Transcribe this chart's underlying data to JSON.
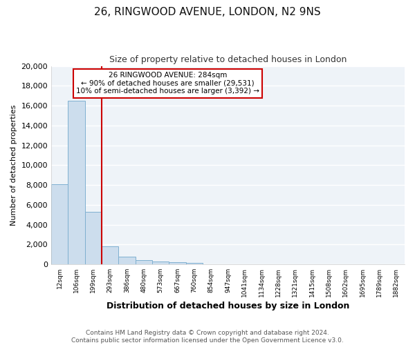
{
  "title": "26, RINGWOOD AVENUE, LONDON, N2 9NS",
  "subtitle": "Size of property relative to detached houses in London",
  "xlabel": "Distribution of detached houses by size in London",
  "ylabel": "Number of detached properties",
  "bar_labels": [
    "12sqm",
    "106sqm",
    "199sqm",
    "293sqm",
    "386sqm",
    "480sqm",
    "573sqm",
    "667sqm",
    "760sqm",
    "854sqm",
    "947sqm",
    "1041sqm",
    "1134sqm",
    "1228sqm",
    "1321sqm",
    "1415sqm",
    "1508sqm",
    "1602sqm",
    "1695sqm",
    "1789sqm",
    "1882sqm"
  ],
  "bar_values": [
    8100,
    16500,
    5300,
    1800,
    750,
    400,
    250,
    200,
    150,
    0,
    0,
    0,
    0,
    0,
    0,
    0,
    0,
    0,
    0,
    0,
    0
  ],
  "bar_color": "#ccdded",
  "bar_edge_color": "#7fb0d0",
  "vline_color": "#cc0000",
  "ylim": [
    0,
    20000
  ],
  "yticks": [
    0,
    2000,
    4000,
    6000,
    8000,
    10000,
    12000,
    14000,
    16000,
    18000,
    20000
  ],
  "annotation_line1": "26 RINGWOOD AVENUE: 284sqm",
  "annotation_line2": "← 90% of detached houses are smaller (29,531)",
  "annotation_line3": "10% of semi-detached houses are larger (3,392) →",
  "footer1": "Contains HM Land Registry data © Crown copyright and database right 2024.",
  "footer2": "Contains public sector information licensed under the Open Government Licence v3.0.",
  "background_color": "#ffffff",
  "plot_bg_color": "#eef3f8",
  "grid_color": "#ffffff"
}
